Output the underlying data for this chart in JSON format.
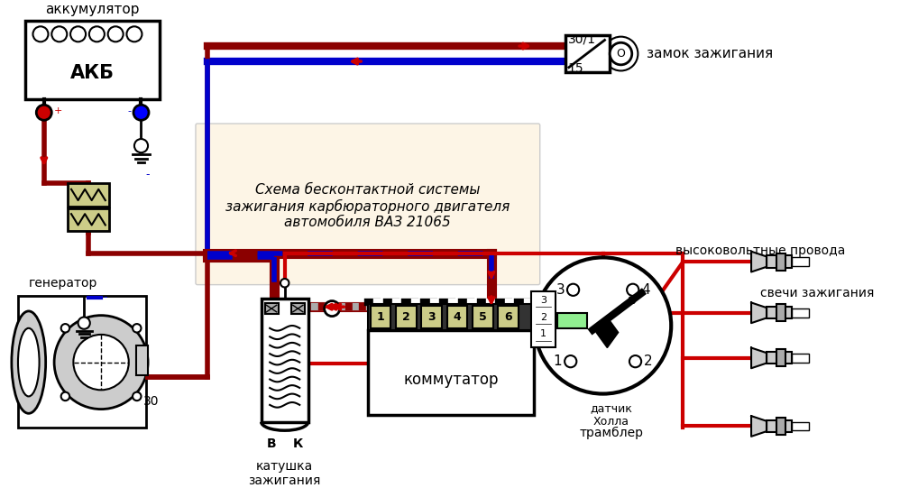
{
  "title": "Схема бесконтактной системы\nзажигания карбюраторного двигателя\nавтомобиля ВАЗ 21065",
  "bg_color": "#ffffff",
  "diagram_bg": "#fdf5e6",
  "dark_red": "#8b0000",
  "red": "#cc0000",
  "blue": "#0000cc",
  "black": "#000000",
  "gray": "#999999",
  "light_gray": "#cccccc",
  "med_gray": "#aaaaaa",
  "green": "#00aa00",
  "light_green": "#90ee90",
  "yellow_green": "#cccc88",
  "label_akkum": "аккумулятор",
  "label_akb": "АКБ",
  "label_generator": "генератор",
  "label_coil": "катушка\nзажигания",
  "label_commutator": "коммутатор",
  "label_distributor": "трамблер",
  "label_hall": "датчик\nХолла",
  "label_lock": "замок зажигания",
  "label_hv_wires": "высоковольтные провода",
  "label_spark_plugs": "свечи зажигания",
  "label_30": "30",
  "label_30_1": "30/1",
  "label_15": "15",
  "label_B": "В",
  "label_K": "К"
}
